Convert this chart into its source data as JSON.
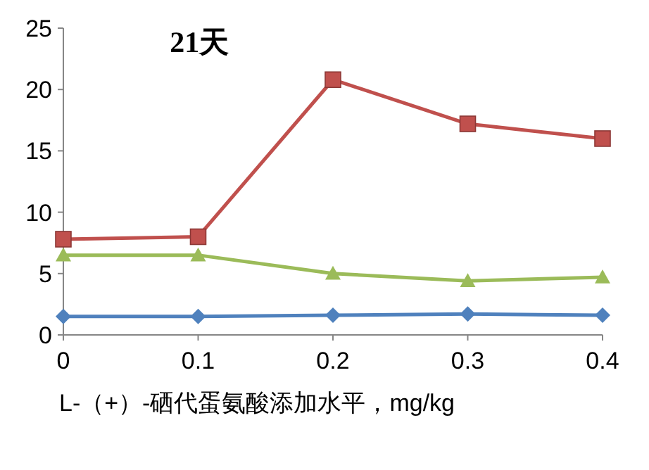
{
  "chart_data": {
    "type": "line",
    "title": "21天",
    "xlabel": "L-（+）-硒代蛋氨酸添加水平，mg/kg",
    "x": [
      0,
      0.1,
      0.2,
      0.3,
      0.4
    ],
    "xlim": [
      0,
      0.4
    ],
    "xticks": [
      0,
      0.1,
      0.2,
      0.3,
      0.4
    ],
    "ylim": [
      0,
      25
    ],
    "yticks": [
      0,
      5,
      10,
      15,
      20,
      25
    ],
    "grid": false,
    "line_style": "solid",
    "series": [
      {
        "color": "#4f81bd",
        "marker": "diamond",
        "values": [
          1.5,
          1.5,
          1.6,
          1.7,
          1.6
        ]
      },
      {
        "color": "#c0504d",
        "marker": "square",
        "values": [
          7.8,
          8.0,
          20.8,
          17.2,
          16.0
        ]
      },
      {
        "color": "#9bbb59",
        "marker": "triangle",
        "values": [
          6.5,
          6.5,
          5.0,
          4.4,
          4.7
        ]
      }
    ]
  }
}
